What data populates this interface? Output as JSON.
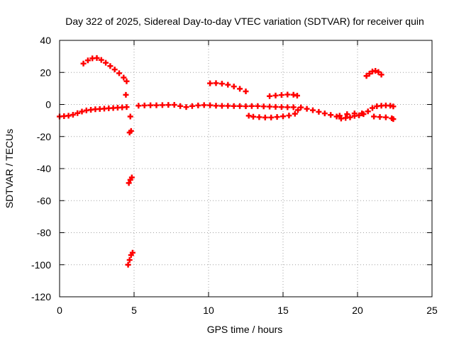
{
  "chart_data": {
    "type": "scatter",
    "title": "Day 322 of 2025, Sidereal Day-to-day VTEC variation (SDTVAR) for receiver quin",
    "xlabel": "GPS time / hours",
    "ylabel": "SDTVAR / TECUs",
    "xlim": [
      0,
      25
    ],
    "ylim": [
      -120,
      40
    ],
    "xticks": [
      0,
      5,
      10,
      15,
      20,
      25
    ],
    "yticks": [
      -120,
      -100,
      -80,
      -60,
      -40,
      -20,
      0,
      20,
      40
    ],
    "grid": true,
    "legend": "none",
    "series": [
      {
        "name": "SDTVAR",
        "color": "#ff0000",
        "marker": "plus",
        "points": [
          [
            0.0,
            -7.5
          ],
          [
            0.3,
            -7.3
          ],
          [
            0.6,
            -7.0
          ],
          [
            0.9,
            -6.4
          ],
          [
            1.2,
            -5.4
          ],
          [
            1.5,
            -4.4
          ],
          [
            1.8,
            -3.7
          ],
          [
            2.1,
            -3.3
          ],
          [
            2.4,
            -3.0
          ],
          [
            2.7,
            -2.8
          ],
          [
            3.0,
            -2.6
          ],
          [
            3.3,
            -2.4
          ],
          [
            3.6,
            -2.2
          ],
          [
            3.9,
            -2.0
          ],
          [
            4.2,
            -1.8
          ],
          [
            4.5,
            -1.6
          ],
          [
            1.6,
            25.5
          ],
          [
            1.9,
            27.5
          ],
          [
            2.2,
            28.8
          ],
          [
            2.5,
            29.0
          ],
          [
            2.8,
            27.8
          ],
          [
            3.1,
            26.0
          ],
          [
            3.4,
            24.0
          ],
          [
            3.7,
            21.8
          ],
          [
            4.0,
            19.5
          ],
          [
            4.3,
            16.8
          ],
          [
            4.5,
            14.5
          ],
          [
            4.45,
            6.0
          ],
          [
            4.75,
            -7.5
          ],
          [
            4.7,
            -17.5
          ],
          [
            4.8,
            -16.5
          ],
          [
            4.65,
            -49.0
          ],
          [
            4.75,
            -47.0
          ],
          [
            4.85,
            -45.5
          ],
          [
            4.6,
            -100.0
          ],
          [
            4.7,
            -97.0
          ],
          [
            4.8,
            -94.0
          ],
          [
            4.9,
            -92.5
          ],
          [
            5.3,
            -0.8
          ],
          [
            5.7,
            -0.6
          ],
          [
            6.1,
            -0.5
          ],
          [
            6.5,
            -0.5
          ],
          [
            6.9,
            -0.4
          ],
          [
            7.3,
            -0.3
          ],
          [
            7.7,
            -0.2
          ],
          [
            8.1,
            -1.0
          ],
          [
            8.5,
            -1.6
          ],
          [
            8.9,
            -1.0
          ],
          [
            9.3,
            -0.6
          ],
          [
            9.7,
            -0.4
          ],
          [
            10.1,
            -0.5
          ],
          [
            10.5,
            -0.8
          ],
          [
            10.9,
            -0.9
          ],
          [
            11.3,
            -0.9
          ],
          [
            11.7,
            -1.0
          ],
          [
            12.1,
            -1.0
          ],
          [
            12.5,
            -1.1
          ],
          [
            12.9,
            -1.0
          ],
          [
            13.3,
            -1.0
          ],
          [
            13.7,
            -1.2
          ],
          [
            14.1,
            -1.3
          ],
          [
            14.5,
            -1.5
          ],
          [
            14.9,
            -1.6
          ],
          [
            15.3,
            -1.7
          ],
          [
            15.7,
            -1.7
          ],
          [
            10.1,
            13.2
          ],
          [
            10.5,
            13.3
          ],
          [
            10.9,
            13.0
          ],
          [
            11.3,
            12.3
          ],
          [
            11.7,
            11.2
          ],
          [
            12.1,
            9.8
          ],
          [
            12.5,
            8.2
          ],
          [
            12.7,
            -7.0
          ],
          [
            13.0,
            -7.6
          ],
          [
            13.4,
            -7.9
          ],
          [
            13.8,
            -8.1
          ],
          [
            14.2,
            -8.1
          ],
          [
            14.6,
            -7.8
          ],
          [
            15.0,
            -7.4
          ],
          [
            15.4,
            -6.9
          ],
          [
            15.8,
            -5.8
          ],
          [
            16.0,
            -3.5
          ],
          [
            14.1,
            5.2
          ],
          [
            14.5,
            5.6
          ],
          [
            14.9,
            5.9
          ],
          [
            15.3,
            6.2
          ],
          [
            15.7,
            6.1
          ],
          [
            15.95,
            5.5
          ],
          [
            16.2,
            -1.8
          ],
          [
            16.6,
            -2.7
          ],
          [
            17.0,
            -3.6
          ],
          [
            17.4,
            -4.6
          ],
          [
            17.8,
            -5.6
          ],
          [
            18.2,
            -6.5
          ],
          [
            18.6,
            -7.5
          ],
          [
            18.9,
            -8.8
          ],
          [
            19.2,
            -8.4
          ],
          [
            19.5,
            -8.0
          ],
          [
            19.8,
            -7.1
          ],
          [
            20.1,
            -6.8
          ],
          [
            20.4,
            -6.0
          ],
          [
            20.7,
            -4.3
          ],
          [
            21.0,
            -2.2
          ],
          [
            21.3,
            -1.1
          ],
          [
            21.6,
            -0.8
          ],
          [
            21.9,
            -0.6
          ],
          [
            22.2,
            -0.8
          ],
          [
            22.4,
            -1.2
          ],
          [
            18.8,
            -7.0
          ],
          [
            19.3,
            -6.0
          ],
          [
            19.8,
            -5.6
          ],
          [
            20.3,
            -5.5
          ],
          [
            20.6,
            17.8
          ],
          [
            20.8,
            19.2
          ],
          [
            21.0,
            20.6
          ],
          [
            21.2,
            21.0
          ],
          [
            21.4,
            20.3
          ],
          [
            21.6,
            18.6
          ],
          [
            21.1,
            -7.5
          ],
          [
            21.5,
            -7.8
          ],
          [
            21.9,
            -8.0
          ],
          [
            22.3,
            -8.6
          ],
          [
            22.4,
            -9.1
          ]
        ]
      }
    ]
  }
}
